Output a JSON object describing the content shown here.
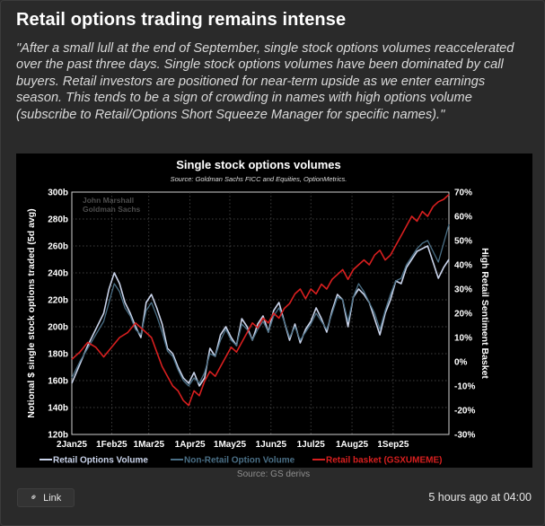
{
  "post": {
    "title": "Retail options trading remains intense",
    "quote": "\"After a small lull at the end of September, single stock options volumes reaccelerated over the past three days. Single stock options volumes have been dominated by call buyers. Retail investors are positioned for near-term upside as we enter earnings season. This tends to be a sign of crowding in names with high options volume (subscribe to Retail/Options Short Squeeze Manager for specific names).\"",
    "source": "Source: GS derivs",
    "link_label": "Link",
    "timestamp": "5 hours ago at 04:00"
  },
  "chart_data": {
    "type": "line",
    "title": "Single stock options volumes",
    "subtitle": "Source: Goldman Sachs FICC and Equities, OptionMetrics.",
    "watermark": [
      "John Marshall",
      "Goldman Sachs"
    ],
    "ylabel": "Notional $ single stock options traded (5d avg)",
    "y2label": "High Retail Sentiment Basket",
    "ylim": [
      120,
      300
    ],
    "y2lim": [
      -30,
      70
    ],
    "yticks": [
      "120b",
      "140b",
      "160b",
      "180b",
      "200b",
      "220b",
      "240b",
      "260b",
      "280b",
      "300b"
    ],
    "y2ticks": [
      "-30%",
      "-20%",
      "-10%",
      "0%",
      "10%",
      "20%",
      "30%",
      "40%",
      "50%",
      "60%",
      "70%"
    ],
    "xticks": [
      "2Jan25",
      "1Feb25",
      "1Mar25",
      "1Apr25",
      "1May25",
      "1Jun25",
      "1Jul25",
      "1Aug25",
      "1Sep25"
    ],
    "xlim": [
      0,
      284
    ],
    "xtick_days": [
      0,
      30,
      58,
      89,
      119,
      150,
      180,
      211,
      242
    ],
    "grid": true,
    "legend": "bottom",
    "series": [
      {
        "name": "Retail Options Volume",
        "color": "#c9d3ea",
        "axis": "left",
        "points": [
          [
            0,
            158
          ],
          [
            6,
            172
          ],
          [
            12,
            186
          ],
          [
            18,
            198
          ],
          [
            24,
            210
          ],
          [
            28,
            228
          ],
          [
            32,
            240
          ],
          [
            36,
            232
          ],
          [
            40,
            218
          ],
          [
            44,
            210
          ],
          [
            48,
            200
          ],
          [
            52,
            192
          ],
          [
            56,
            218
          ],
          [
            60,
            224
          ],
          [
            64,
            214
          ],
          [
            68,
            202
          ],
          [
            72,
            184
          ],
          [
            76,
            180
          ],
          [
            80,
            170
          ],
          [
            84,
            162
          ],
          [
            88,
            158
          ],
          [
            92,
            166
          ],
          [
            96,
            156
          ],
          [
            100,
            162
          ],
          [
            104,
            184
          ],
          [
            108,
            178
          ],
          [
            112,
            194
          ],
          [
            116,
            200
          ],
          [
            120,
            192
          ],
          [
            124,
            186
          ],
          [
            128,
            206
          ],
          [
            132,
            200
          ],
          [
            136,
            190
          ],
          [
            140,
            202
          ],
          [
            144,
            208
          ],
          [
            148,
            196
          ],
          [
            152,
            212
          ],
          [
            156,
            218
          ],
          [
            160,
            204
          ],
          [
            164,
            190
          ],
          [
            168,
            202
          ],
          [
            172,
            188
          ],
          [
            176,
            198
          ],
          [
            180,
            204
          ],
          [
            184,
            214
          ],
          [
            188,
            206
          ],
          [
            192,
            196
          ],
          [
            196,
            212
          ],
          [
            200,
            224
          ],
          [
            204,
            220
          ],
          [
            208,
            200
          ],
          [
            212,
            222
          ],
          [
            216,
            228
          ],
          [
            220,
            224
          ],
          [
            224,
            218
          ],
          [
            228,
            206
          ],
          [
            232,
            194
          ],
          [
            236,
            210
          ],
          [
            240,
            220
          ],
          [
            244,
            234
          ],
          [
            248,
            232
          ],
          [
            252,
            244
          ],
          [
            256,
            250
          ],
          [
            260,
            256
          ],
          [
            264,
            258
          ],
          [
            268,
            260
          ],
          [
            272,
            248
          ],
          [
            276,
            236
          ],
          [
            280,
            244
          ],
          [
            284,
            250
          ]
        ]
      },
      {
        "name": "Non-Retail Option Volume",
        "color": "#4a6f86",
        "axis": "left",
        "points": [
          [
            0,
            162
          ],
          [
            6,
            174
          ],
          [
            12,
            184
          ],
          [
            18,
            194
          ],
          [
            24,
            204
          ],
          [
            28,
            218
          ],
          [
            32,
            232
          ],
          [
            36,
            226
          ],
          [
            40,
            214
          ],
          [
            44,
            208
          ],
          [
            48,
            198
          ],
          [
            52,
            194
          ],
          [
            56,
            212
          ],
          [
            60,
            218
          ],
          [
            64,
            208
          ],
          [
            68,
            196
          ],
          [
            72,
            182
          ],
          [
            76,
            178
          ],
          [
            80,
            168
          ],
          [
            84,
            160
          ],
          [
            88,
            156
          ],
          [
            92,
            162
          ],
          [
            96,
            158
          ],
          [
            100,
            166
          ],
          [
            104,
            180
          ],
          [
            108,
            178
          ],
          [
            112,
            190
          ],
          [
            116,
            198
          ],
          [
            120,
            190
          ],
          [
            124,
            186
          ],
          [
            128,
            202
          ],
          [
            132,
            198
          ],
          [
            136,
            190
          ],
          [
            140,
            198
          ],
          [
            144,
            204
          ],
          [
            148,
            196
          ],
          [
            152,
            208
          ],
          [
            156,
            214
          ],
          [
            160,
            204
          ],
          [
            164,
            192
          ],
          [
            168,
            200
          ],
          [
            172,
            190
          ],
          [
            176,
            196
          ],
          [
            180,
            202
          ],
          [
            184,
            210
          ],
          [
            188,
            204
          ],
          [
            192,
            198
          ],
          [
            196,
            210
          ],
          [
            200,
            222
          ],
          [
            204,
            220
          ],
          [
            208,
            204
          ],
          [
            212,
            222
          ],
          [
            216,
            232
          ],
          [
            220,
            226
          ],
          [
            224,
            218
          ],
          [
            228,
            210
          ],
          [
            232,
            198
          ],
          [
            236,
            212
          ],
          [
            240,
            224
          ],
          [
            244,
            234
          ],
          [
            248,
            236
          ],
          [
            252,
            246
          ],
          [
            256,
            252
          ],
          [
            260,
            258
          ],
          [
            264,
            262
          ],
          [
            268,
            264
          ],
          [
            272,
            256
          ],
          [
            276,
            248
          ],
          [
            280,
            262
          ],
          [
            284,
            276
          ]
        ]
      },
      {
        "name": "Retail basket (GSXUMEME)",
        "color": "#d81f1f",
        "axis": "right",
        "points": [
          [
            0,
            1
          ],
          [
            6,
            4
          ],
          [
            12,
            8
          ],
          [
            18,
            6
          ],
          [
            24,
            2
          ],
          [
            30,
            6
          ],
          [
            36,
            10
          ],
          [
            42,
            12
          ],
          [
            48,
            16
          ],
          [
            54,
            13
          ],
          [
            60,
            10
          ],
          [
            64,
            4
          ],
          [
            68,
            -2
          ],
          [
            72,
            -6
          ],
          [
            76,
            -10
          ],
          [
            80,
            -12
          ],
          [
            84,
            -16
          ],
          [
            88,
            -18
          ],
          [
            92,
            -12
          ],
          [
            96,
            -14
          ],
          [
            100,
            -8
          ],
          [
            104,
            -4
          ],
          [
            108,
            -6
          ],
          [
            112,
            -2
          ],
          [
            116,
            2
          ],
          [
            120,
            6
          ],
          [
            124,
            4
          ],
          [
            128,
            8
          ],
          [
            132,
            12
          ],
          [
            136,
            16
          ],
          [
            140,
            14
          ],
          [
            144,
            18
          ],
          [
            148,
            16
          ],
          [
            152,
            20
          ],
          [
            156,
            18
          ],
          [
            160,
            22
          ],
          [
            164,
            24
          ],
          [
            168,
            28
          ],
          [
            172,
            30
          ],
          [
            176,
            26
          ],
          [
            180,
            30
          ],
          [
            184,
            28
          ],
          [
            188,
            32
          ],
          [
            192,
            30
          ],
          [
            196,
            34
          ],
          [
            200,
            36
          ],
          [
            204,
            38
          ],
          [
            208,
            34
          ],
          [
            212,
            38
          ],
          [
            216,
            40
          ],
          [
            220,
            42
          ],
          [
            224,
            40
          ],
          [
            228,
            44
          ],
          [
            232,
            46
          ],
          [
            236,
            42
          ],
          [
            240,
            44
          ],
          [
            244,
            48
          ],
          [
            248,
            52
          ],
          [
            252,
            56
          ],
          [
            256,
            60
          ],
          [
            260,
            58
          ],
          [
            264,
            62
          ],
          [
            268,
            60
          ],
          [
            272,
            64
          ],
          [
            276,
            66
          ],
          [
            280,
            67
          ],
          [
            284,
            69
          ]
        ]
      }
    ]
  }
}
